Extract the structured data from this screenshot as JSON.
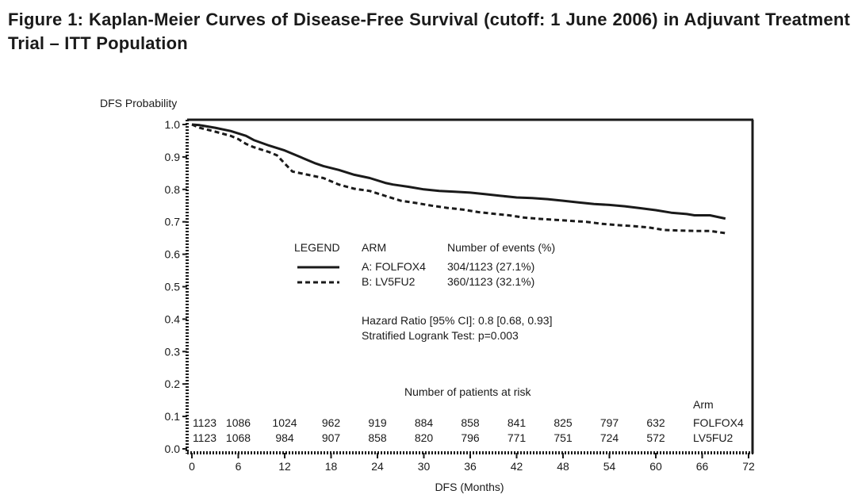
{
  "figure": {
    "title": "Figure 1: Kaplan-Meier Curves of Disease-Free Survival (cutoff: 1 June 2006) in Adjuvant Treatment Trial – ITT Population"
  },
  "chart_data": {
    "type": "line",
    "title": "Figure 1: Kaplan-Meier Curves of Disease-Free Survival (cutoff: 1 June 2006) in Adjuvant Treatment Trial – ITT Population",
    "xlabel": "DFS (Months)",
    "ylabel": "DFS Probability",
    "xlim": [
      0,
      72
    ],
    "ylim": [
      0.0,
      1.0
    ],
    "x_ticks": [
      0,
      6,
      12,
      18,
      24,
      30,
      36,
      42,
      48,
      54,
      60,
      66,
      72
    ],
    "y_ticks": [
      "0.0",
      "0.1",
      "0.2",
      "0.3",
      "0.4",
      "0.5",
      "0.6",
      "0.7",
      "0.8",
      "0.9",
      "1.0"
    ],
    "grid": false,
    "series": [
      {
        "name": "A: FOLFOX4",
        "style": "solid",
        "x": [
          0,
          1,
          3,
          5,
          7,
          8,
          10,
          12,
          14,
          16,
          17,
          19,
          21,
          23,
          25,
          26,
          28,
          30,
          32,
          34,
          36,
          38,
          40,
          42,
          44,
          46,
          48,
          50,
          52,
          54,
          56,
          58,
          60,
          62,
          64,
          65,
          67,
          69
        ],
        "y": [
          1.0,
          0.998,
          0.99,
          0.98,
          0.965,
          0.952,
          0.935,
          0.92,
          0.9,
          0.88,
          0.872,
          0.86,
          0.845,
          0.835,
          0.82,
          0.815,
          0.808,
          0.8,
          0.795,
          0.793,
          0.79,
          0.785,
          0.78,
          0.775,
          0.773,
          0.77,
          0.765,
          0.76,
          0.755,
          0.752,
          0.748,
          0.742,
          0.736,
          0.728,
          0.724,
          0.72,
          0.72,
          0.71
        ]
      },
      {
        "name": "B: LV5FU2",
        "style": "dashed",
        "x": [
          0,
          1,
          3,
          5,
          6,
          7,
          8,
          10,
          11,
          12,
          13,
          15,
          17,
          19,
          21,
          23,
          25,
          27,
          29,
          31,
          33,
          35,
          37,
          39,
          41,
          43,
          45,
          47,
          49,
          51,
          53,
          55,
          57,
          59,
          61,
          63,
          65,
          67,
          69
        ],
        "y": [
          1.0,
          0.99,
          0.978,
          0.965,
          0.955,
          0.94,
          0.93,
          0.915,
          0.905,
          0.88,
          0.855,
          0.845,
          0.835,
          0.815,
          0.802,
          0.795,
          0.78,
          0.765,
          0.758,
          0.75,
          0.743,
          0.738,
          0.73,
          0.725,
          0.72,
          0.713,
          0.709,
          0.706,
          0.703,
          0.7,
          0.694,
          0.69,
          0.687,
          0.683,
          0.675,
          0.673,
          0.672,
          0.672,
          0.665
        ]
      }
    ],
    "legend": {
      "placement": "center",
      "header_legend": "LEGEND",
      "header_arm": "ARM",
      "header_events": "Number of events (%)",
      "rows": [
        {
          "arm": "A: FOLFOX4",
          "events": "304/1123 (27.1%)",
          "style": "solid"
        },
        {
          "arm": "B: LV5FU2",
          "events": "360/1123 (32.1%)",
          "style": "dashed"
        }
      ]
    },
    "annotations": {
      "hazard_ratio": "Hazard Ratio [95% CI]: 0.8 [0.68, 0.93]",
      "logrank": "Stratified Logrank Test: p=0.003"
    },
    "at_risk": {
      "title": "Number of patients at risk",
      "arm_header": "Arm",
      "times": [
        0,
        6,
        12,
        18,
        24,
        30,
        36,
        42,
        48,
        54,
        60
      ],
      "rows": [
        {
          "arm": "FOLFOX4",
          "values": [
            "1123",
            "1086",
            "1024",
            "962",
            "919",
            "884",
            "858",
            "841",
            "825",
            "797",
            "632"
          ]
        },
        {
          "arm": "LV5FU2",
          "values": [
            "1123",
            "1068",
            "984",
            "907",
            "858",
            "820",
            "796",
            "771",
            "751",
            "724",
            "572"
          ]
        }
      ]
    }
  }
}
